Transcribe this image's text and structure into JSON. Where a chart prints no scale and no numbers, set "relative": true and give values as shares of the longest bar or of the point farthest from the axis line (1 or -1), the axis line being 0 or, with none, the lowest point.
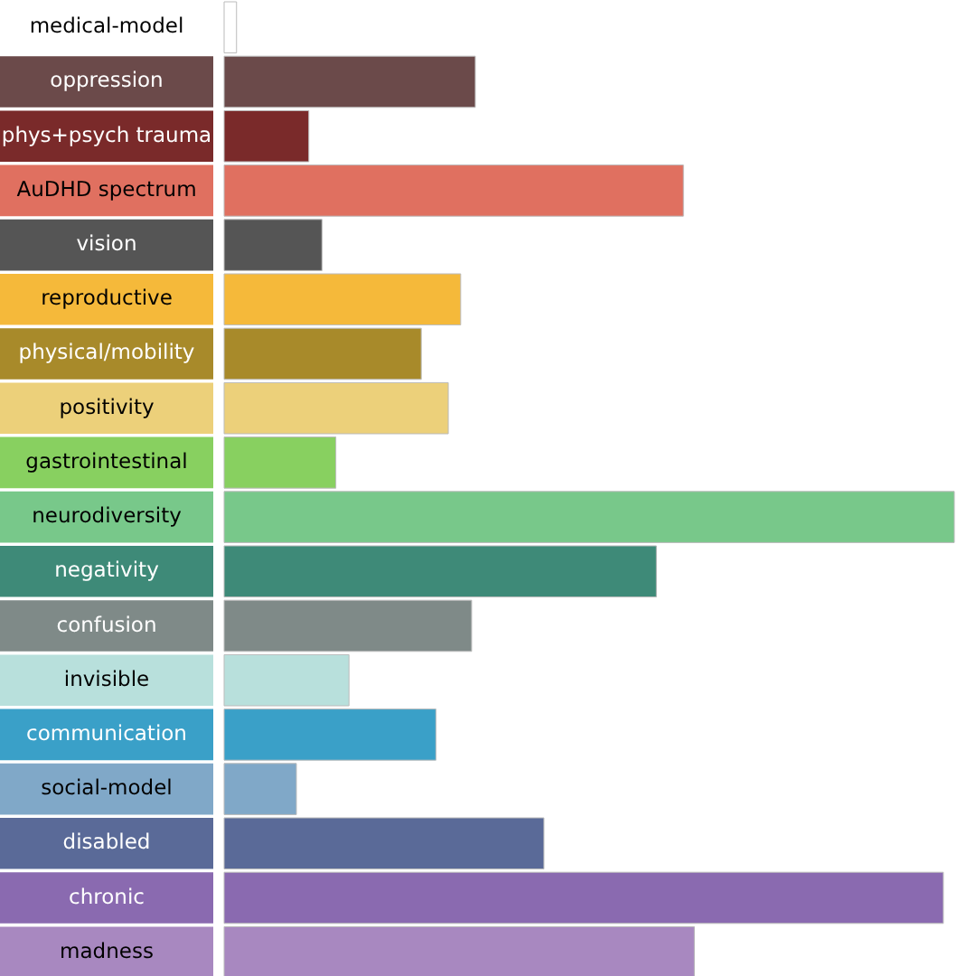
{
  "chart_data": {
    "type": "bar",
    "orientation": "horizontal",
    "relative": true,
    "categories": [
      "medical-model",
      "oppression",
      "phys+psych trauma",
      "AuDHD spectrum",
      "vision",
      "reproductive",
      "physical/mobility",
      "positivity",
      "gastrointestinal",
      "neurodiversity",
      "negativity",
      "confusion",
      "invisible",
      "communication",
      "social-model",
      "disabled",
      "chronic",
      "madness"
    ],
    "values": [
      0.017,
      0.344,
      0.116,
      0.629,
      0.134,
      0.324,
      0.27,
      0.307,
      0.153,
      1,
      0.592,
      0.339,
      0.171,
      0.29,
      0.099,
      0.438,
      0.985,
      0.644
    ],
    "colors": [
      "#ffffff",
      "#6b4a4a",
      "#7a2a2a",
      "#e07060",
      "#555555",
      "#f5b93a",
      "#a88a2a",
      "#ecd07a",
      "#88d060",
      "#78c88a",
      "#3e8a78",
      "#7f8a88",
      "#b8e0dc",
      "#3aa0c8",
      "#80a8c8",
      "#5a6a98",
      "#8a6ab0",
      "#a888c0"
    ]
  }
}
